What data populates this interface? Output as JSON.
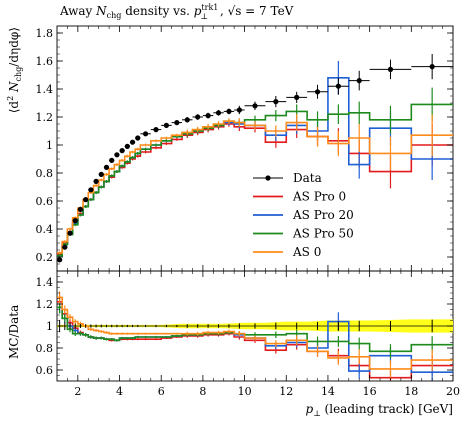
{
  "chart_data": {
    "type": "line",
    "title": "Away N_chg density vs. p⊥^trk1, √s = 7 TeV",
    "title_parts": {
      "prefix": "Away ",
      "N": "N",
      "N_sub": "chg",
      "mid": " density vs. ",
      "p": "p",
      "p_sub": "⊥",
      "p_sup": "trk1",
      "sqrt_s": ", √s = 7 TeV"
    },
    "xlabel_parts": {
      "p": "p",
      "sub": "⊥",
      "rest": " (leading track) [GeV]"
    },
    "ylabel_main": "⟨d² N_chg/dηdφ⟩",
    "ylabel_main_parts": {
      "open": "⟨d",
      "sup2": "2",
      "N": " N",
      "sub": "chg",
      "rest": "/dηdφ⟩"
    },
    "ylabel_ratio": "MC/Data",
    "xlim": [
      1,
      20
    ],
    "ylim_main": [
      0.1,
      1.85
    ],
    "ylim_ratio": [
      0.5,
      1.5
    ],
    "x_ticks": [
      "2",
      "4",
      "6",
      "8",
      "10",
      "12",
      "14",
      "16",
      "18",
      "20"
    ],
    "y_ticks_main": [
      "0.2",
      "0.4",
      "0.6",
      "0.8",
      "1",
      "1.2",
      "1.4",
      "1.6",
      "1.8"
    ],
    "y_ticks_ratio": [
      "0.6",
      "0.8",
      "1",
      "1.2",
      "1.4"
    ],
    "legend_position": "lower-right",
    "bin_edges": [
      1.0,
      1.25,
      1.5,
      1.75,
      2.0,
      2.25,
      2.5,
      2.75,
      3.0,
      3.25,
      3.5,
      3.75,
      4.0,
      4.25,
      4.5,
      4.75,
      5.0,
      5.5,
      6.0,
      6.5,
      7.0,
      7.5,
      8.0,
      8.5,
      9.0,
      9.5,
      10.0,
      11.0,
      12.0,
      13.0,
      14.0,
      15.0,
      16.0,
      18.0,
      20.0
    ],
    "data": {
      "name": "Data",
      "x": [
        1.125,
        1.375,
        1.625,
        1.875,
        2.125,
        2.375,
        2.625,
        2.875,
        3.125,
        3.375,
        3.625,
        3.875,
        4.125,
        4.375,
        4.625,
        4.875,
        5.25,
        5.75,
        6.25,
        6.75,
        7.25,
        7.75,
        8.25,
        8.75,
        9.25,
        9.75,
        10.5,
        11.5,
        12.5,
        13.5,
        14.5,
        15.5,
        17.0,
        19.0
      ],
      "y": [
        0.18,
        0.27,
        0.37,
        0.46,
        0.54,
        0.61,
        0.68,
        0.74,
        0.79,
        0.84,
        0.89,
        0.93,
        0.96,
        0.99,
        1.02,
        1.05,
        1.08,
        1.11,
        1.14,
        1.16,
        1.18,
        1.2,
        1.21,
        1.23,
        1.24,
        1.25,
        1.28,
        1.31,
        1.34,
        1.38,
        1.42,
        1.46,
        1.54,
        1.56
      ],
      "yerr": [
        0.01,
        0.01,
        0.01,
        0.01,
        0.01,
        0.01,
        0.01,
        0.01,
        0.01,
        0.01,
        0.01,
        0.01,
        0.01,
        0.01,
        0.01,
        0.01,
        0.01,
        0.01,
        0.01,
        0.01,
        0.02,
        0.02,
        0.02,
        0.02,
        0.02,
        0.03,
        0.03,
        0.04,
        0.04,
        0.05,
        0.06,
        0.07,
        0.07,
        0.09
      ]
    },
    "series": [
      {
        "name": "AS Pro 0",
        "color": "#e41a1c",
        "y": [
          0.22,
          0.3,
          0.38,
          0.45,
          0.51,
          0.56,
          0.61,
          0.66,
          0.7,
          0.74,
          0.77,
          0.81,
          0.84,
          0.87,
          0.9,
          0.92,
          0.95,
          0.98,
          1.01,
          1.04,
          1.07,
          1.09,
          1.11,
          1.13,
          1.15,
          1.13,
          1.12,
          1.02,
          1.11,
          1.06,
          1.03,
          0.94,
          0.81,
          1.0
        ],
        "yerr": [
          0.01,
          0.01,
          0.01,
          0.01,
          0.01,
          0.01,
          0.01,
          0.01,
          0.01,
          0.01,
          0.01,
          0.01,
          0.01,
          0.01,
          0.01,
          0.01,
          0.01,
          0.01,
          0.01,
          0.01,
          0.02,
          0.02,
          0.02,
          0.02,
          0.02,
          0.03,
          0.03,
          0.04,
          0.06,
          0.07,
          0.09,
          0.1,
          0.12,
          0.15
        ],
        "ratio": [
          1.22,
          1.11,
          1.03,
          0.98,
          0.94,
          0.92,
          0.9,
          0.89,
          0.89,
          0.88,
          0.87,
          0.87,
          0.88,
          0.88,
          0.88,
          0.88,
          0.88,
          0.88,
          0.89,
          0.9,
          0.91,
          0.91,
          0.92,
          0.92,
          0.93,
          0.9,
          0.87,
          0.78,
          0.83,
          0.77,
          0.73,
          0.64,
          0.53,
          0.64
        ]
      },
      {
        "name": "AS Pro 20",
        "color": "#1f5fd6",
        "y": [
          0.21,
          0.29,
          0.37,
          0.44,
          0.5,
          0.56,
          0.61,
          0.66,
          0.7,
          0.74,
          0.78,
          0.81,
          0.85,
          0.88,
          0.91,
          0.94,
          0.97,
          1.0,
          1.03,
          1.06,
          1.08,
          1.1,
          1.12,
          1.14,
          1.16,
          1.15,
          1.14,
          1.07,
          1.14,
          1.1,
          1.48,
          0.86,
          1.12,
          0.9
        ],
        "yerr": [
          0.01,
          0.01,
          0.01,
          0.01,
          0.01,
          0.01,
          0.01,
          0.01,
          0.01,
          0.01,
          0.01,
          0.01,
          0.01,
          0.01,
          0.01,
          0.01,
          0.01,
          0.01,
          0.01,
          0.01,
          0.02,
          0.02,
          0.02,
          0.02,
          0.02,
          0.03,
          0.03,
          0.04,
          0.06,
          0.07,
          0.12,
          0.1,
          0.12,
          0.15
        ],
        "ratio": [
          1.17,
          1.07,
          1.0,
          0.96,
          0.93,
          0.92,
          0.9,
          0.89,
          0.89,
          0.88,
          0.88,
          0.87,
          0.89,
          0.89,
          0.89,
          0.9,
          0.9,
          0.9,
          0.9,
          0.91,
          0.92,
          0.92,
          0.93,
          0.93,
          0.94,
          0.92,
          0.89,
          0.82,
          0.85,
          0.8,
          1.04,
          0.59,
          0.73,
          0.58
        ]
      },
      {
        "name": "AS Pro 50",
        "color": "#1e8a1e",
        "y": [
          0.21,
          0.29,
          0.36,
          0.43,
          0.5,
          0.56,
          0.61,
          0.66,
          0.7,
          0.74,
          0.78,
          0.81,
          0.85,
          0.88,
          0.91,
          0.94,
          0.97,
          1.0,
          1.03,
          1.06,
          1.08,
          1.1,
          1.12,
          1.14,
          1.17,
          1.16,
          1.18,
          1.21,
          1.24,
          1.18,
          1.22,
          1.23,
          1.18,
          1.29
        ],
        "yerr": [
          0.01,
          0.01,
          0.01,
          0.01,
          0.01,
          0.01,
          0.01,
          0.01,
          0.01,
          0.01,
          0.01,
          0.01,
          0.01,
          0.01,
          0.01,
          0.01,
          0.01,
          0.01,
          0.01,
          0.01,
          0.02,
          0.02,
          0.02,
          0.02,
          0.02,
          0.03,
          0.03,
          0.04,
          0.05,
          0.06,
          0.07,
          0.08,
          0.1,
          0.12
        ],
        "ratio": [
          1.17,
          1.07,
          0.97,
          0.93,
          0.93,
          0.92,
          0.9,
          0.89,
          0.89,
          0.88,
          0.88,
          0.87,
          0.89,
          0.89,
          0.89,
          0.9,
          0.9,
          0.9,
          0.9,
          0.91,
          0.92,
          0.92,
          0.93,
          0.93,
          0.94,
          0.93,
          0.92,
          0.92,
          0.93,
          0.86,
          0.86,
          0.84,
          0.77,
          0.83
        ]
      },
      {
        "name": "AS 0",
        "color": "#ff8c1a",
        "y": [
          0.23,
          0.31,
          0.4,
          0.48,
          0.55,
          0.61,
          0.66,
          0.71,
          0.75,
          0.79,
          0.83,
          0.86,
          0.89,
          0.92,
          0.95,
          0.97,
          1.0,
          1.03,
          1.05,
          1.07,
          1.09,
          1.11,
          1.13,
          1.15,
          1.17,
          1.16,
          1.14,
          1.1,
          1.16,
          1.06,
          1.01,
          1.05,
          0.94,
          1.07
        ],
        "yerr": [
          0.01,
          0.01,
          0.01,
          0.01,
          0.01,
          0.01,
          0.01,
          0.01,
          0.01,
          0.01,
          0.01,
          0.01,
          0.01,
          0.01,
          0.01,
          0.01,
          0.01,
          0.01,
          0.01,
          0.01,
          0.02,
          0.02,
          0.02,
          0.02,
          0.02,
          0.03,
          0.03,
          0.04,
          0.06,
          0.07,
          0.09,
          0.1,
          0.12,
          0.15
        ],
        "ratio": [
          1.26,
          1.15,
          1.08,
          1.04,
          1.02,
          1.0,
          0.97,
          0.96,
          0.95,
          0.94,
          0.93,
          0.93,
          0.93,
          0.93,
          0.93,
          0.93,
          0.93,
          0.93,
          0.93,
          0.93,
          0.93,
          0.93,
          0.94,
          0.94,
          0.95,
          0.93,
          0.89,
          0.84,
          0.87,
          0.77,
          0.71,
          0.72,
          0.61,
          0.69
        ]
      }
    ],
    "data_band": {
      "x": [
        1.0,
        1.25,
        1.5,
        1.75,
        2.0,
        3.0,
        4.0,
        5.0,
        6.0,
        7.0,
        8.0,
        9.0,
        10.0,
        11.0,
        12.0,
        13.0,
        14.0,
        15.0,
        16.0,
        18.0,
        20.0
      ],
      "low": [
        0.99,
        0.99,
        0.99,
        0.99,
        0.99,
        0.99,
        0.99,
        0.99,
        0.99,
        0.98,
        0.98,
        0.98,
        0.97,
        0.97,
        0.96,
        0.96,
        0.95,
        0.95,
        0.95,
        0.94,
        0.94
      ],
      "high": [
        1.01,
        1.01,
        1.01,
        1.01,
        1.01,
        1.01,
        1.01,
        1.01,
        1.01,
        1.02,
        1.02,
        1.02,
        1.03,
        1.03,
        1.04,
        1.04,
        1.05,
        1.05,
        1.05,
        1.06,
        1.06
      ]
    }
  }
}
